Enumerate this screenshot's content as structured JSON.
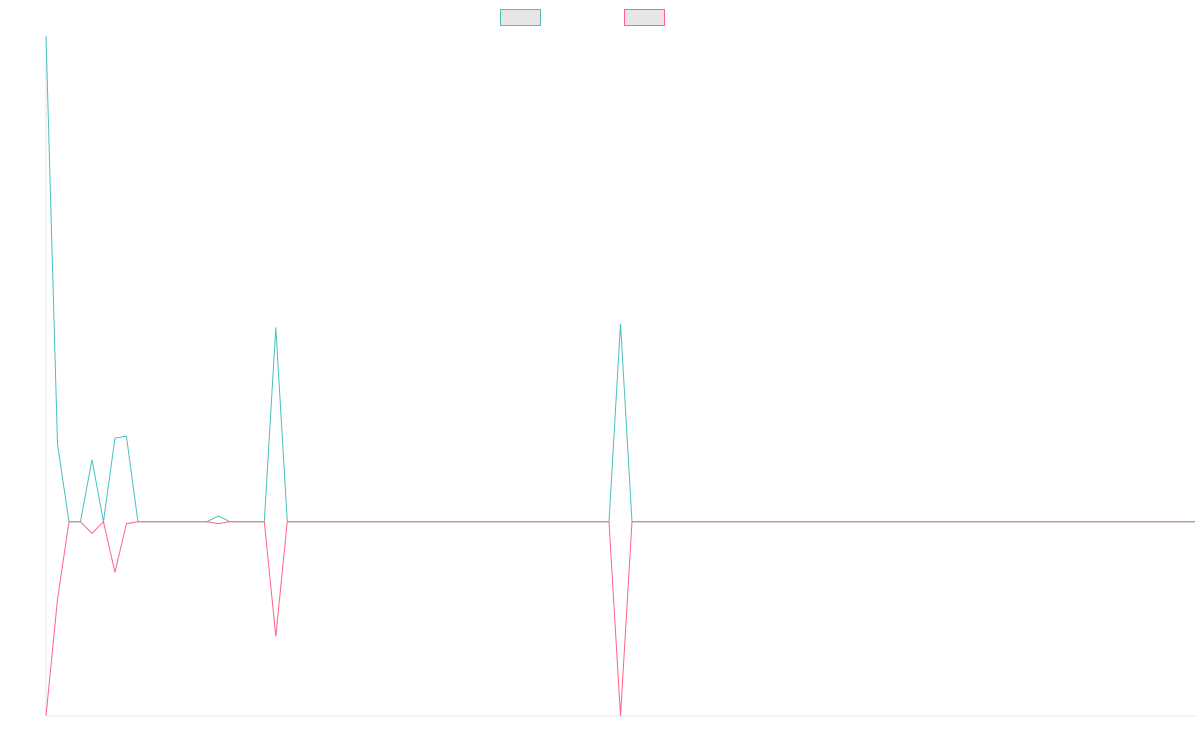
{
  "chart_data": {
    "type": "line",
    "title": "",
    "xlabel": "",
    "ylabel": "",
    "x": [
      0,
      1,
      2,
      3,
      4,
      5,
      6,
      7,
      8,
      9,
      10,
      11,
      12,
      13,
      14,
      15,
      16,
      17,
      18,
      19,
      20,
      21,
      22,
      23,
      24,
      25,
      26,
      27,
      28,
      29,
      30,
      31,
      32,
      33,
      34,
      35,
      36,
      37,
      38,
      39,
      40,
      41,
      42,
      43,
      44,
      45,
      46,
      47,
      48,
      49,
      50,
      51,
      52,
      53,
      54,
      55,
      56,
      57,
      58,
      59,
      60,
      61,
      62,
      63,
      64,
      65,
      66,
      67,
      68,
      69,
      70,
      71,
      72,
      73,
      74,
      75,
      76,
      77,
      78,
      79,
      80,
      81,
      82,
      83,
      84,
      85,
      86,
      87,
      88,
      89,
      90,
      91,
      92,
      93,
      94,
      95,
      96,
      97,
      98,
      99,
      100
    ],
    "xlim": [
      0,
      100
    ],
    "ylim": [
      -1.0,
      2.5
    ],
    "grid": false,
    "legend": "top-center",
    "series": [
      {
        "color": "#4BC0C0",
        "fill": "#E6E6E6",
        "values": [
          2.5,
          0.4,
          0,
          0,
          0.32,
          0,
          0.43,
          0.44,
          0,
          0,
          0,
          0,
          0,
          0,
          0,
          0.03,
          0,
          0,
          0,
          0,
          1.0,
          0,
          0,
          0,
          0,
          0,
          0,
          0,
          0,
          0,
          0,
          0,
          0,
          0,
          0,
          0,
          0,
          0,
          0,
          0,
          0,
          0,
          0,
          0,
          0,
          0,
          0,
          0,
          0,
          0,
          1.02,
          0,
          0,
          0,
          0,
          0,
          0,
          0,
          0,
          0,
          0,
          0,
          0,
          0,
          0,
          0,
          0,
          0,
          0,
          0,
          0,
          0,
          0,
          0,
          0,
          0,
          0,
          0,
          0,
          0,
          0,
          0,
          0,
          0,
          0,
          0,
          0,
          0,
          0,
          0,
          0,
          0,
          0,
          0,
          0,
          0,
          0,
          0,
          0,
          0,
          0
        ]
      },
      {
        "color": "#FF6384",
        "fill": "#E6E6E6",
        "values": [
          -1.0,
          -0.4,
          0,
          0,
          -0.06,
          0,
          -0.26,
          -0.01,
          0,
          0,
          0,
          0,
          0,
          0,
          0,
          -0.01,
          0,
          0,
          0,
          0,
          -0.59,
          0,
          0,
          0,
          0,
          0,
          0,
          0,
          0,
          0,
          0,
          0,
          0,
          0,
          0,
          0,
          0,
          0,
          0,
          0,
          0,
          0,
          0,
          0,
          0,
          0,
          0,
          0,
          0,
          0,
          -1.0,
          0,
          0,
          0,
          0,
          0,
          0,
          0,
          0,
          0,
          0,
          0,
          0,
          0,
          0,
          0,
          0,
          0,
          0,
          0,
          0,
          0,
          0,
          0,
          0,
          0,
          0,
          0,
          0,
          0,
          0,
          0,
          0,
          0,
          0,
          0,
          0,
          0,
          0,
          0,
          0,
          0,
          0,
          0,
          0,
          0,
          0,
          0,
          0,
          0,
          0
        ]
      }
    ]
  }
}
